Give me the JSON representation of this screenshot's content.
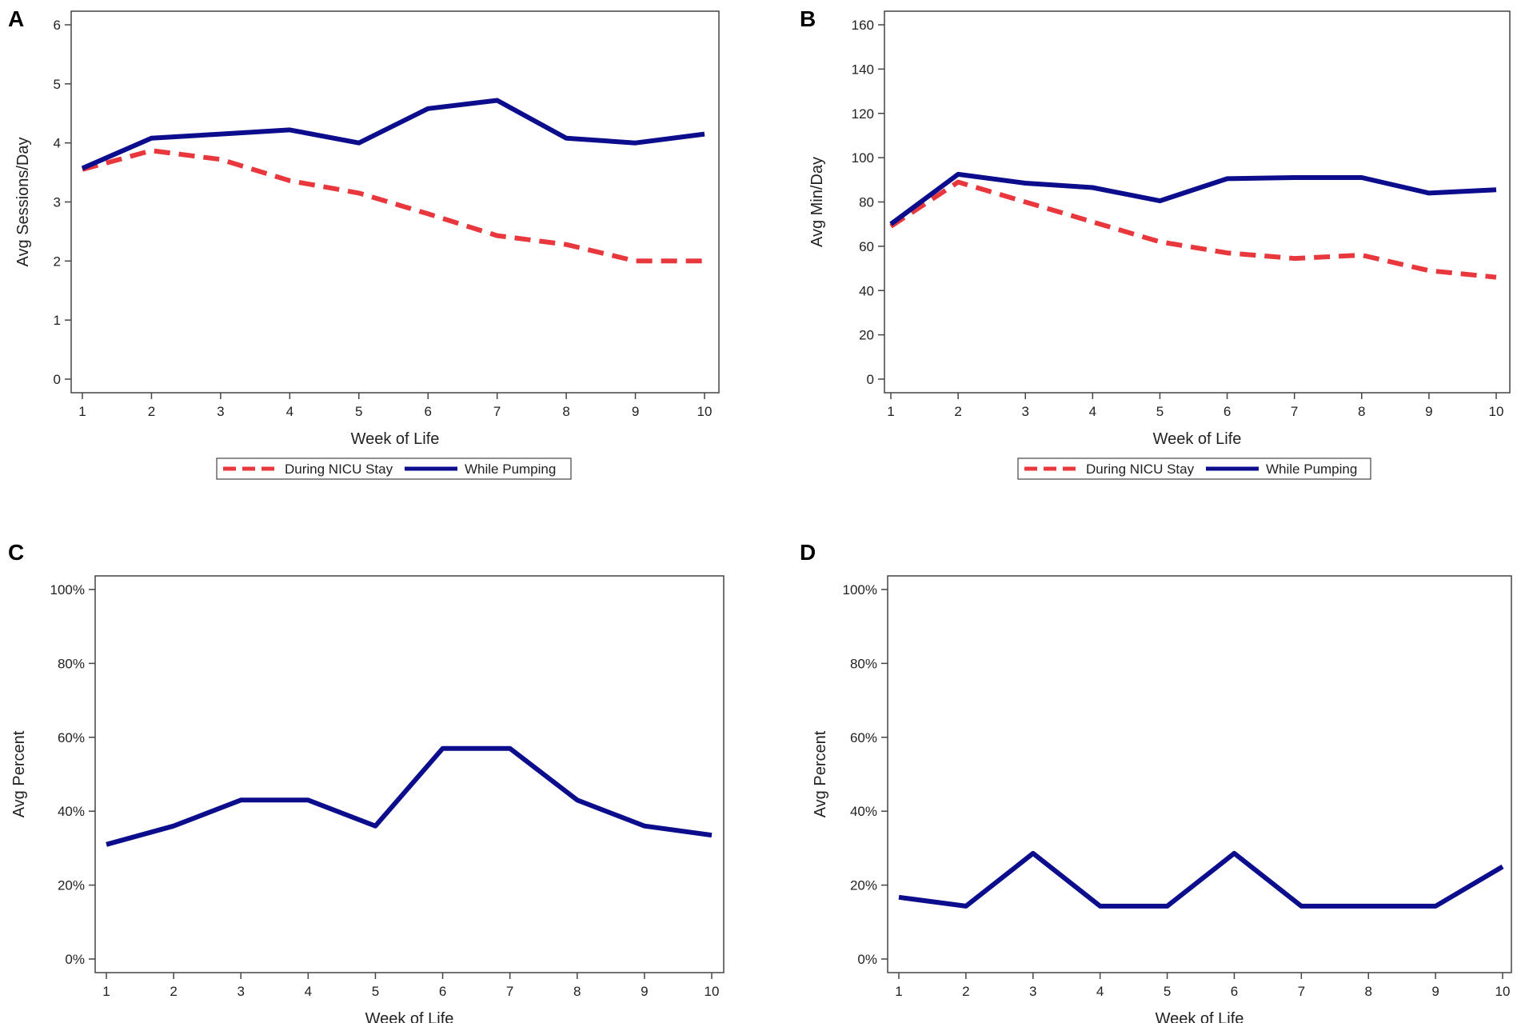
{
  "colors": {
    "nicu": "#e8383d",
    "pumping": "#0b0d8c",
    "axis": "#444444"
  },
  "chart_data": [
    {
      "panel": "A",
      "type": "line",
      "xlabel": "Week of Life",
      "ylabel": "Avg Sessions/Day",
      "ylim": [
        0,
        6
      ],
      "yticks": [
        0,
        1,
        2,
        3,
        4,
        5,
        6
      ],
      "ytick_labels": [
        "0",
        "1",
        "2",
        "3",
        "4",
        "5",
        "6"
      ],
      "x": [
        1,
        2,
        3,
        4,
        5,
        6,
        7,
        8,
        9,
        10
      ],
      "x_tick_labels": [
        "1",
        "2",
        "3",
        "4",
        "5",
        "6",
        "7",
        "8",
        "9",
        "10"
      ],
      "series": [
        {
          "name": "During NICU Stay",
          "style": "dashed",
          "values": [
            3.55,
            3.87,
            3.72,
            3.36,
            3.15,
            2.8,
            2.43,
            2.28,
            2.0,
            2.0
          ]
        },
        {
          "name": "While Pumping",
          "style": "solid",
          "values": [
            3.57,
            4.08,
            4.15,
            4.22,
            4.0,
            4.58,
            4.72,
            4.08,
            4.0,
            4.15
          ]
        }
      ],
      "legend": [
        "During NICU Stay",
        "While Pumping"
      ]
    },
    {
      "panel": "B",
      "type": "line",
      "xlabel": "Week of Life",
      "ylabel": "Avg Min/Day",
      "ylim": [
        0,
        160
      ],
      "yticks": [
        0,
        20,
        40,
        60,
        80,
        100,
        120,
        140,
        160
      ],
      "ytick_labels": [
        "0",
        "20",
        "40",
        "60",
        "80",
        "100",
        "120",
        "140",
        "160"
      ],
      "x": [
        1,
        2,
        3,
        4,
        5,
        6,
        7,
        8,
        9,
        10
      ],
      "x_tick_labels": [
        "1",
        "2",
        "3",
        "4",
        "5",
        "6",
        "7",
        "8",
        "9",
        "10"
      ],
      "series": [
        {
          "name": "During NICU Stay",
          "style": "dashed",
          "values": [
            69,
            89,
            80,
            71,
            62,
            57,
            54.5,
            56,
            49,
            46
          ]
        },
        {
          "name": "While Pumping",
          "style": "solid",
          "values": [
            70,
            92.5,
            88.5,
            86.5,
            80.5,
            90.5,
            91,
            91,
            84,
            85.5
          ]
        }
      ],
      "legend": [
        "During NICU Stay",
        "While Pumping"
      ]
    },
    {
      "panel": "C",
      "type": "line",
      "xlabel": "Week of Life",
      "ylabel": "Avg Percent",
      "ylim": [
        0,
        100
      ],
      "yticks": [
        0,
        20,
        40,
        60,
        80,
        100
      ],
      "ytick_labels": [
        "0%",
        "20%",
        "40%",
        "60%",
        "80%",
        "100%"
      ],
      "x": [
        1,
        2,
        3,
        4,
        5,
        6,
        7,
        8,
        9,
        10
      ],
      "x_tick_labels": [
        "1",
        "2",
        "3",
        "4",
        "5",
        "6",
        "7",
        "8",
        "9",
        "10"
      ],
      "series": [
        {
          "name": "Avg Percent",
          "style": "solid",
          "values": [
            31,
            36,
            43,
            43,
            36,
            57,
            57,
            43,
            36,
            33.5
          ]
        }
      ]
    },
    {
      "panel": "D",
      "type": "line",
      "xlabel": "Week of Life",
      "ylabel": "Avg Percent",
      "ylim": [
        0,
        100
      ],
      "yticks": [
        0,
        20,
        40,
        60,
        80,
        100
      ],
      "ytick_labels": [
        "0%",
        "20%",
        "40%",
        "60%",
        "80%",
        "100%"
      ],
      "x": [
        1,
        2,
        3,
        4,
        5,
        6,
        7,
        8,
        9,
        10
      ],
      "x_tick_labels": [
        "1",
        "2",
        "3",
        "4",
        "5",
        "6",
        "7",
        "8",
        "9",
        "10"
      ],
      "series": [
        {
          "name": "Avg Percent",
          "style": "solid",
          "values": [
            16.7,
            14.3,
            28.6,
            14.3,
            14.3,
            28.6,
            14.3,
            14.3,
            14.3,
            25
          ]
        }
      ]
    }
  ]
}
